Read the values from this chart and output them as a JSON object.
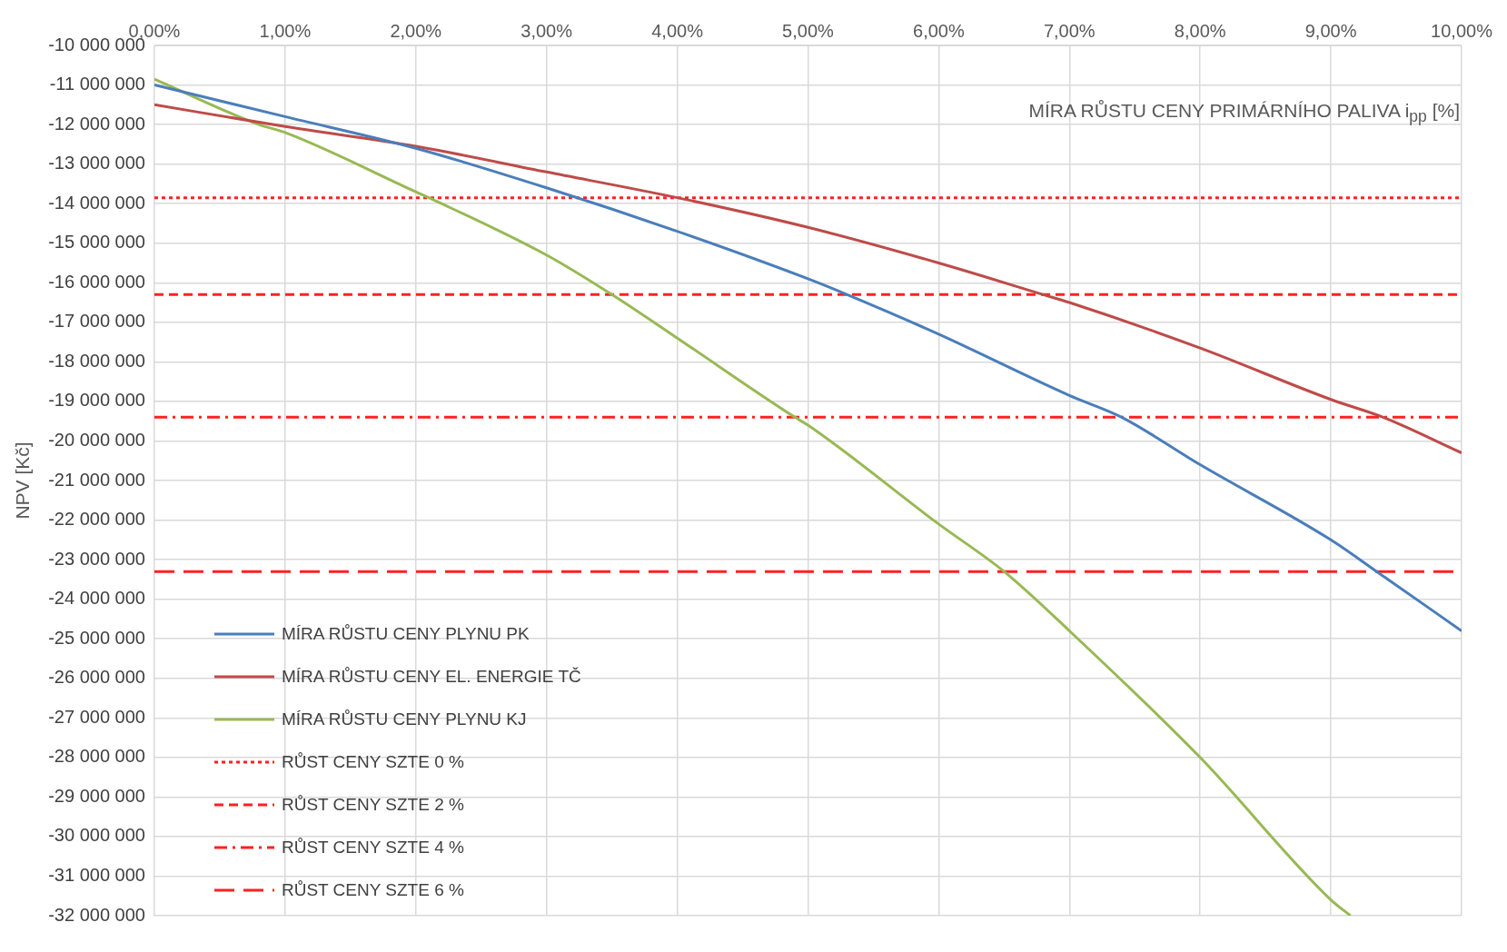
{
  "chart_data": {
    "type": "line",
    "xlabel": "MÍRA RŮSTU CENY PRIMÁRNÍHO PALIVA i$_{pp}$ [%]",
    "ylabel": "NPV [Kč]",
    "xlim": [
      0,
      10
    ],
    "xticks": [
      {
        "value": 0,
        "label": "0,00%"
      },
      {
        "value": 1,
        "label": "1,00%"
      },
      {
        "value": 2,
        "label": "2,00%"
      },
      {
        "value": 3,
        "label": "3,00%"
      },
      {
        "value": 4,
        "label": "4,00%"
      },
      {
        "value": 5,
        "label": "5,00%"
      },
      {
        "value": 6,
        "label": "6,00%"
      },
      {
        "value": 7,
        "label": "7,00%"
      },
      {
        "value": 8,
        "label": "8,00%"
      },
      {
        "value": 9,
        "label": "9,00%"
      },
      {
        "value": 10,
        "label": "10,00%"
      }
    ],
    "ylim": [
      -32000000,
      -10000000
    ],
    "yticks": [
      {
        "value": -10000000,
        "label": "-10 000 000"
      },
      {
        "value": -11000000,
        "label": "-11 000 000"
      },
      {
        "value": -12000000,
        "label": "-12 000 000"
      },
      {
        "value": -13000000,
        "label": "-13 000 000"
      },
      {
        "value": -14000000,
        "label": "-14 000 000"
      },
      {
        "value": -15000000,
        "label": "-15 000 000"
      },
      {
        "value": -16000000,
        "label": "-16 000 000"
      },
      {
        "value": -17000000,
        "label": "-17 000 000"
      },
      {
        "value": -18000000,
        "label": "-18 000 000"
      },
      {
        "value": -19000000,
        "label": "-19 000 000"
      },
      {
        "value": -20000000,
        "label": "-20 000 000"
      },
      {
        "value": -21000000,
        "label": "-21 000 000"
      },
      {
        "value": -22000000,
        "label": "-22 000 000"
      },
      {
        "value": -23000000,
        "label": "-23 000 000"
      },
      {
        "value": -24000000,
        "label": "-24 000 000"
      },
      {
        "value": -25000000,
        "label": "-25 000 000"
      },
      {
        "value": -26000000,
        "label": "-26 000 000"
      },
      {
        "value": -27000000,
        "label": "-27 000 000"
      },
      {
        "value": -28000000,
        "label": "-28 000 000"
      },
      {
        "value": -29000000,
        "label": "-29 000 000"
      },
      {
        "value": -30000000,
        "label": "-30 000 000"
      },
      {
        "value": -31000000,
        "label": "-31 000 000"
      },
      {
        "value": -32000000,
        "label": "-32 000 000"
      }
    ],
    "grid": true,
    "legend": "bottom left",
    "marker": "none",
    "series": [
      {
        "name": "MÍRA RŮSTU CENY PLYNU PK",
        "color": "#4a7ebb",
        "line_style": "solid",
        "x": [
          0,
          1,
          2,
          3,
          4,
          5,
          5.3,
          6,
          7,
          7.4,
          8,
          9,
          9.35,
          10
        ],
        "values": [
          -11000000,
          -11800000,
          -12600000,
          -13600000,
          -14700000,
          -15900000,
          -16300000,
          -17300000,
          -18850000,
          -19400000,
          -20600000,
          -22500000,
          -23300000,
          -24800000
        ]
      },
      {
        "name": "MÍRA RŮSTU CENY EL. ENERGIE TČ",
        "color": "#be4b48",
        "line_style": "solid",
        "x": [
          0,
          1,
          2,
          3,
          4,
          5,
          6,
          6.8,
          7,
          8,
          9,
          9.4,
          10
        ],
        "values": [
          -11500000,
          -12050000,
          -12550000,
          -13200000,
          -13850000,
          -14600000,
          -15500000,
          -16300000,
          -16500000,
          -17650000,
          -18950000,
          -19400000,
          -20300000
        ]
      },
      {
        "name": "MÍRA RŮSTU CENY PLYNU KJ",
        "color": "#98b954",
        "line_style": "solid",
        "x": [
          0,
          0.8,
          1,
          2,
          2.1,
          3,
          3.5,
          4,
          4.9,
          5,
          6,
          6.5,
          7,
          8,
          9,
          9.15
        ],
        "values": [
          -10850000,
          -12000000,
          -12200000,
          -13700000,
          -13850000,
          -15300000,
          -16300000,
          -17400000,
          -19400000,
          -19600000,
          -22100000,
          -23300000,
          -24800000,
          -28000000,
          -31600000,
          -32000000
        ]
      },
      {
        "name": "RŮST CENY SZTE 0 %",
        "color": "#ff2020",
        "line_style": "dotted",
        "x": [
          0,
          10
        ],
        "values": [
          -13850000,
          -13850000
        ]
      },
      {
        "name": "RŮST CENY SZTE 2 %",
        "color": "#ff2020",
        "line_style": "dashed",
        "x": [
          0,
          10
        ],
        "values": [
          -16300000,
          -16300000
        ]
      },
      {
        "name": "RŮST CENY SZTE 4 %",
        "color": "#ff2020",
        "line_style": "dashdot",
        "x": [
          0,
          10
        ],
        "values": [
          -19400000,
          -19400000
        ]
      },
      {
        "name": "RŮST CENY SZTE 6 %",
        "color": "#ff2020",
        "line_style": "longdash",
        "x": [
          0,
          10
        ],
        "values": [
          -23300000,
          -23300000
        ]
      }
    ]
  }
}
